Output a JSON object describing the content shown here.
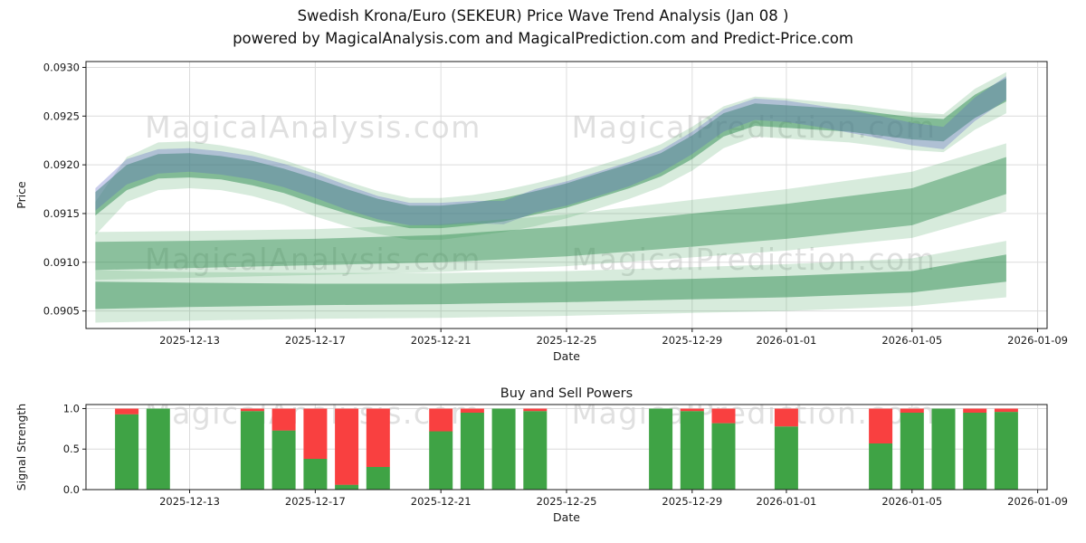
{
  "figure": {
    "suptitle_line1": "Swedish Krona/Euro (SEKEUR) Price Wave Trend Analysis (Jan 08 )",
    "suptitle_line2": "powered by MagicalAnalysis.com and MagicalPrediction.com and Predict-Price.com"
  },
  "watermarks": {
    "left_text": "MagicalAnalysis.com",
    "right_text": "MagicalPrediction.com",
    "color": "#cccccc"
  },
  "chart_data": [
    {
      "type": "area",
      "name": "price-wave-trend",
      "xlabel": "Date",
      "ylabel": "Price",
      "ylim": [
        0.09032,
        0.09306
      ],
      "yticks": [
        0.0905,
        0.091,
        0.0915,
        0.092,
        0.0925,
        0.093
      ],
      "x_tick_dates": [
        "2025-12-13",
        "2025-12-17",
        "2025-12-21",
        "2025-12-25",
        "2025-12-29",
        "2026-01-01",
        "2026-01-05",
        "2026-01-09"
      ],
      "bands": [
        {
          "name": "upper-envelope-light",
          "color": "#49a35e",
          "opacity": 0.22,
          "days": [
            0,
            1,
            2,
            3,
            4,
            5,
            6,
            7,
            8,
            9,
            10,
            11,
            12,
            13,
            14,
            15,
            16,
            17,
            18,
            19,
            20,
            21,
            22,
            23,
            24,
            25,
            26,
            27,
            28,
            29
          ],
          "upper": [
            0.09162,
            0.09208,
            0.09223,
            0.09224,
            0.0922,
            0.09214,
            0.09205,
            0.09194,
            0.09183,
            0.09173,
            0.09166,
            0.09166,
            0.09169,
            0.09174,
            0.09181,
            0.09189,
            0.09199,
            0.09209,
            0.09221,
            0.09239,
            0.0926,
            0.0927,
            0.09268,
            0.09265,
            0.09262,
            0.09258,
            0.09254,
            0.09252,
            0.09278,
            0.09295
          ],
          "lower": [
            0.09128,
            0.09162,
            0.09174,
            0.09176,
            0.09174,
            0.09168,
            0.09159,
            0.09147,
            0.09137,
            0.09129,
            0.09123,
            0.09123,
            0.09127,
            0.09131,
            0.09137,
            0.09145,
            0.09155,
            0.09165,
            0.09177,
            0.09194,
            0.09217,
            0.09229,
            0.09227,
            0.09225,
            0.09223,
            0.09219,
            0.09215,
            0.09213,
            0.09236,
            0.09253
          ]
        },
        {
          "name": "upper-band-green",
          "color": "#2e8b50",
          "opacity": 0.5,
          "days": [
            0,
            1,
            2,
            3,
            4,
            5,
            6,
            7,
            8,
            9,
            10,
            11,
            12,
            13,
            14,
            15,
            16,
            17,
            18,
            19,
            20,
            21,
            22,
            23,
            24,
            25,
            26,
            27,
            28,
            29
          ],
          "upper": [
            0.09172,
            0.092,
            0.09211,
            0.09212,
            0.09209,
            0.09204,
            0.09196,
            0.09186,
            0.09175,
            0.09165,
            0.09158,
            0.09158,
            0.09161,
            0.09166,
            0.09173,
            0.09181,
            0.09191,
            0.09201,
            0.09212,
            0.0923,
            0.09253,
            0.09263,
            0.09261,
            0.09259,
            0.09257,
            0.09253,
            0.09249,
            0.09247,
            0.09272,
            0.09289
          ],
          "lower": [
            0.09148,
            0.09174,
            0.09186,
            0.09187,
            0.09185,
            0.09179,
            0.09171,
            0.0916,
            0.0915,
            0.09141,
            0.09135,
            0.09135,
            0.09138,
            0.09142,
            0.09149,
            0.09156,
            0.09166,
            0.09176,
            0.09188,
            0.09206,
            0.09229,
            0.0924,
            0.09238,
            0.09236,
            0.09234,
            0.0923,
            0.09226,
            0.09224,
            0.09248,
            0.09265
          ]
        },
        {
          "name": "upper-band-blue",
          "color": "#5a68c5",
          "opacity": 0.32,
          "days": [
            0,
            1,
            2,
            3,
            4,
            5,
            6,
            7,
            8,
            9,
            10,
            11,
            12,
            13,
            14,
            15,
            16,
            17,
            18,
            19,
            20,
            21,
            22,
            23,
            24,
            25,
            26,
            27,
            28,
            29
          ],
          "upper": [
            0.09176,
            0.09206,
            0.09216,
            0.09217,
            0.09214,
            0.09209,
            0.09201,
            0.09191,
            0.09179,
            0.09168,
            0.09161,
            0.09161,
            0.09163,
            0.09163,
            0.09175,
            0.09183,
            0.09193,
            0.09203,
            0.09215,
            0.09234,
            0.09257,
            0.09268,
            0.09266,
            0.09261,
            0.09256,
            0.0925,
            0.09243,
            0.09239,
            0.09269,
            0.09291
          ],
          "lower": [
            0.09153,
            0.0918,
            0.09191,
            0.09193,
            0.0919,
            0.09185,
            0.09177,
            0.09166,
            0.09154,
            0.09144,
            0.09138,
            0.09138,
            0.0914,
            0.09139,
            0.09151,
            0.09158,
            0.09168,
            0.09178,
            0.09192,
            0.09211,
            0.09234,
            0.09246,
            0.09244,
            0.09239,
            0.09233,
            0.09227,
            0.0922,
            0.09216,
            0.09245,
            0.09267
          ]
        },
        {
          "name": "lower-band-mid-light",
          "color": "#49a35e",
          "opacity": 0.22,
          "days": [
            0,
            3,
            7,
            11,
            15,
            19,
            22,
            26,
            29
          ],
          "upper": [
            0.09131,
            0.09132,
            0.09134,
            0.09139,
            0.09149,
            0.09164,
            0.09175,
            0.09193,
            0.09222
          ],
          "lower": [
            0.09082,
            0.09084,
            0.09087,
            0.0909,
            0.09096,
            0.09105,
            0.09112,
            0.09125,
            0.09152
          ]
        },
        {
          "name": "lower-band-mid",
          "color": "#2e8b50",
          "opacity": 0.45,
          "days": [
            0,
            3,
            7,
            11,
            15,
            19,
            22,
            26,
            29
          ],
          "upper": [
            0.09121,
            0.09122,
            0.09124,
            0.09128,
            0.09137,
            0.0915,
            0.0916,
            0.09176,
            0.09208
          ],
          "lower": [
            0.09092,
            0.09094,
            0.09097,
            0.091,
            0.09106,
            0.09116,
            0.09124,
            0.09138,
            0.0917
          ]
        },
        {
          "name": "lower-band-low-light",
          "color": "#49a35e",
          "opacity": 0.22,
          "days": [
            0,
            3,
            7,
            11,
            15,
            19,
            22,
            26,
            29
          ],
          "upper": [
            0.09092,
            0.0909,
            0.09089,
            0.09089,
            0.09091,
            0.09095,
            0.09098,
            0.09104,
            0.09122
          ],
          "lower": [
            0.09038,
            0.0904,
            0.09042,
            0.09043,
            0.09045,
            0.09048,
            0.0905,
            0.09055,
            0.09064
          ]
        },
        {
          "name": "lower-band-low",
          "color": "#2e8b50",
          "opacity": 0.5,
          "days": [
            0,
            3,
            7,
            11,
            15,
            19,
            22,
            26,
            29
          ],
          "upper": [
            0.0908,
            0.09079,
            0.09078,
            0.09078,
            0.0908,
            0.09083,
            0.09086,
            0.09091,
            0.09108
          ],
          "lower": [
            0.09052,
            0.09054,
            0.09056,
            0.09057,
            0.09059,
            0.09062,
            0.09064,
            0.09069,
            0.0908
          ]
        }
      ]
    },
    {
      "type": "bar",
      "name": "buy-sell-powers",
      "title": "Buy and Sell Powers",
      "xlabel": "Date",
      "ylabel": "Signal Strength",
      "ylim": [
        0,
        1.05
      ],
      "yticks": [
        0.0,
        0.5,
        1.0
      ],
      "x_tick_dates": [
        "2025-12-13",
        "2025-12-17",
        "2025-12-21",
        "2025-12-25",
        "2025-12-29",
        "2026-01-01",
        "2026-01-05",
        "2026-01-09"
      ],
      "series": [
        {
          "name": "buy",
          "color": "#3fa345"
        },
        {
          "name": "sell",
          "color": "#f94040"
        }
      ],
      "bars": [
        {
          "date": "2025-12-11",
          "buy": 0.93,
          "sell": 0.07
        },
        {
          "date": "2025-12-12",
          "buy": 1.0,
          "sell": 0.0
        },
        {
          "date": "2025-12-15",
          "buy": 0.97,
          "sell": 0.03
        },
        {
          "date": "2025-12-16",
          "buy": 0.73,
          "sell": 0.27
        },
        {
          "date": "2025-12-17",
          "buy": 0.38,
          "sell": 0.62
        },
        {
          "date": "2025-12-18",
          "buy": 0.06,
          "sell": 0.94
        },
        {
          "date": "2025-12-19",
          "buy": 0.28,
          "sell": 0.72
        },
        {
          "date": "2025-12-21",
          "buy": 0.72,
          "sell": 0.28
        },
        {
          "date": "2025-12-22",
          "buy": 0.95,
          "sell": 0.05
        },
        {
          "date": "2025-12-23",
          "buy": 1.0,
          "sell": 0.0
        },
        {
          "date": "2025-12-24",
          "buy": 0.97,
          "sell": 0.03
        },
        {
          "date": "2025-12-28",
          "buy": 1.0,
          "sell": 0.0
        },
        {
          "date": "2025-12-29",
          "buy": 0.97,
          "sell": 0.03
        },
        {
          "date": "2025-12-30",
          "buy": 0.82,
          "sell": 0.18
        },
        {
          "date": "2026-01-01",
          "buy": 0.78,
          "sell": 0.22
        },
        {
          "date": "2026-01-04",
          "buy": 0.57,
          "sell": 0.43
        },
        {
          "date": "2026-01-05",
          "buy": 0.95,
          "sell": 0.05
        },
        {
          "date": "2026-01-06",
          "buy": 1.0,
          "sell": 0.0
        },
        {
          "date": "2026-01-07",
          "buy": 0.95,
          "sell": 0.05
        },
        {
          "date": "2026-01-08",
          "buy": 0.96,
          "sell": 0.04
        }
      ]
    }
  ]
}
